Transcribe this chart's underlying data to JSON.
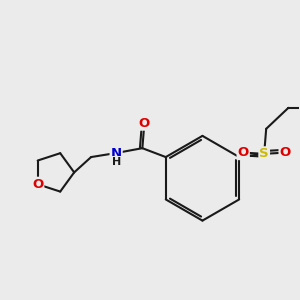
{
  "background_color": "#ebebeb",
  "bond_color": "#1a1a1a",
  "atom_colors": {
    "O": "#dd0000",
    "N": "#0000cc",
    "S": "#ccbb00",
    "H": "#1a1a1a"
  },
  "figsize": [
    3.0,
    3.0
  ],
  "dpi": 100
}
